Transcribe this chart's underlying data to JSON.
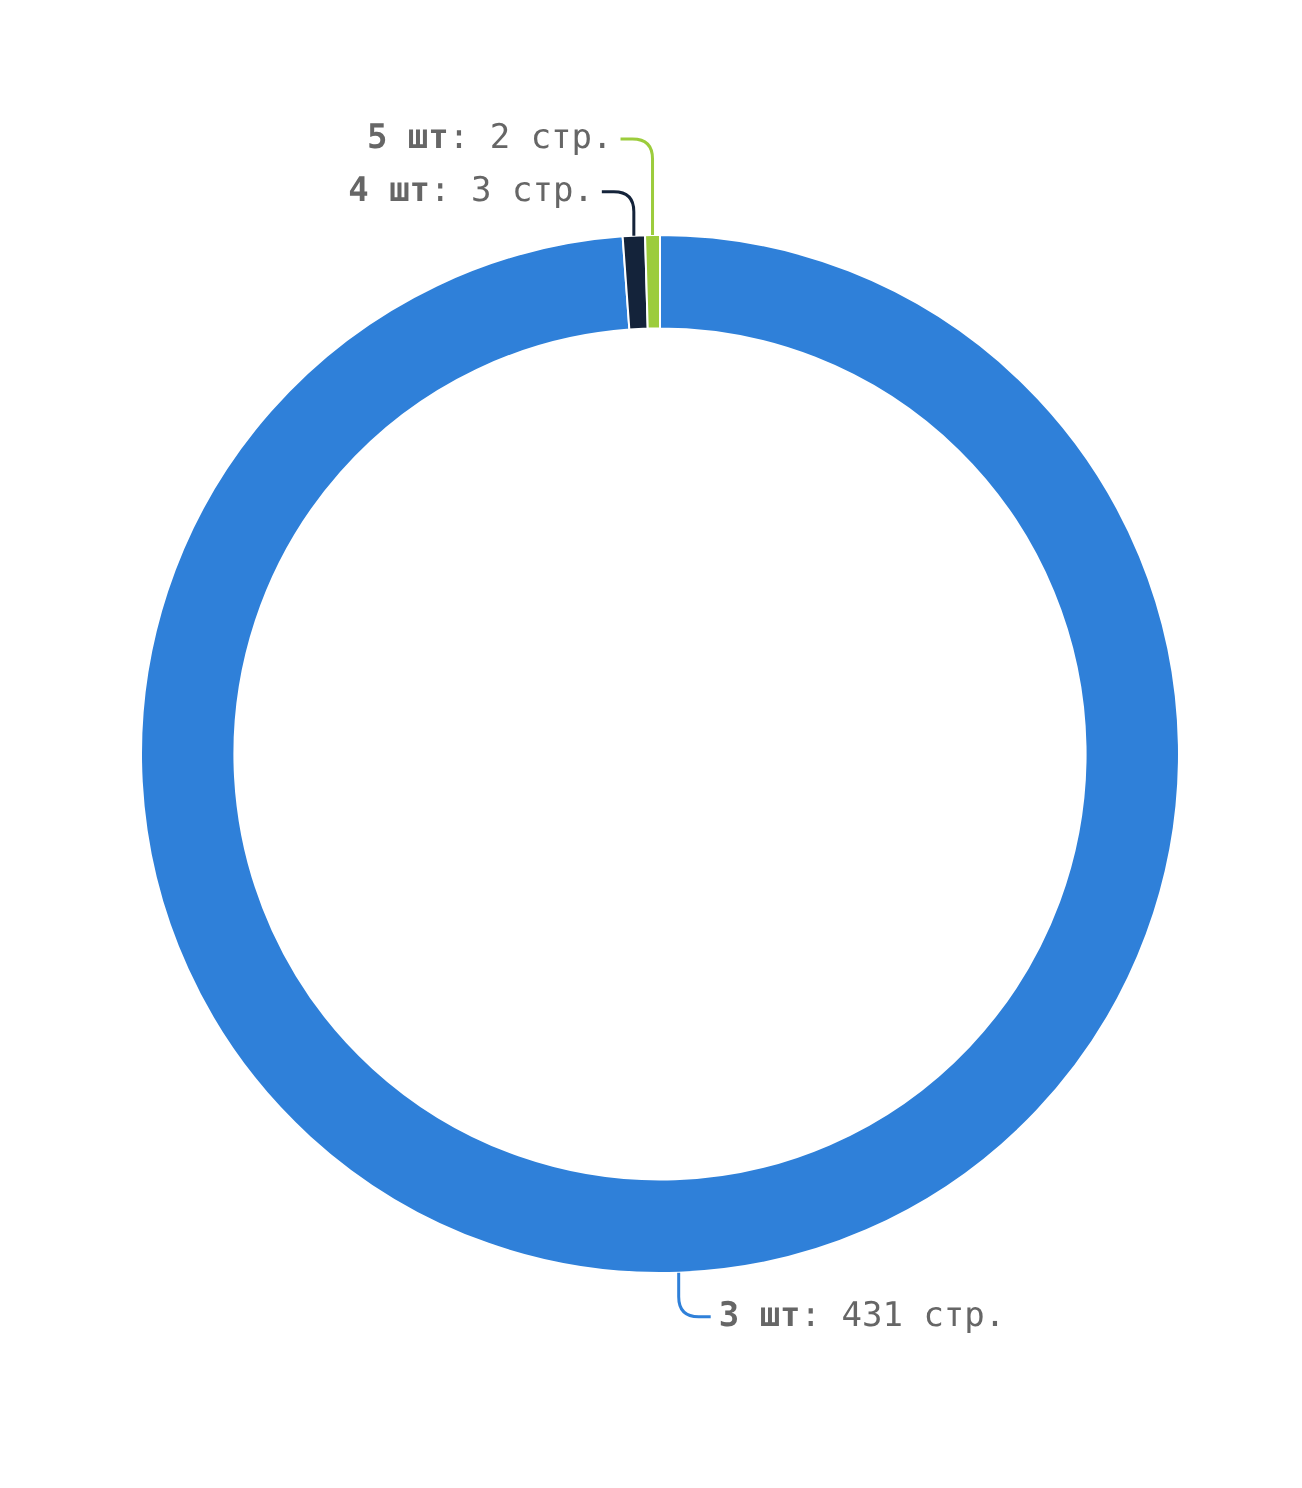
{
  "chart_data": {
    "type": "donut",
    "categories": [
      "3 шт",
      "4 шт",
      "5 шт"
    ],
    "values": [
      431,
      3,
      2
    ],
    "colors": [
      "#2f80d9",
      "#14233a",
      "#9ccc3c"
    ],
    "value_labels": [
      ": 431 стр.",
      ": 3 стр.",
      ": 2 стр."
    ]
  }
}
